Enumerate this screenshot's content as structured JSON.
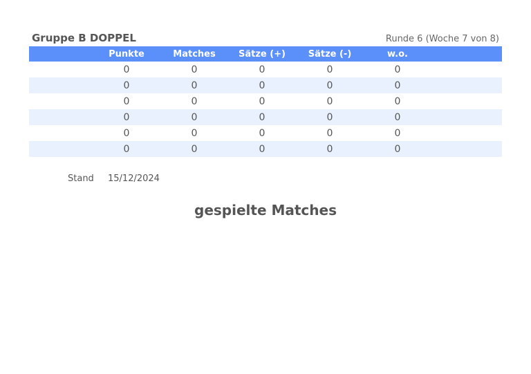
{
  "header": {
    "group_title": "Gruppe B DOPPEL",
    "round_info": "Runde 6 (Woche 7 von 8)"
  },
  "table": {
    "columns": [
      "",
      "Punkte",
      "Matches",
      "Sätze (+)",
      "Sätze (-)",
      "w.o.",
      ""
    ],
    "rows": [
      [
        "",
        "0",
        "0",
        "0",
        "0",
        "0",
        ""
      ],
      [
        "",
        "0",
        "0",
        "0",
        "0",
        "0",
        ""
      ],
      [
        "",
        "0",
        "0",
        "0",
        "0",
        "0",
        ""
      ],
      [
        "",
        "0",
        "0",
        "0",
        "0",
        "0",
        ""
      ],
      [
        "",
        "0",
        "0",
        "0",
        "0",
        "0",
        ""
      ],
      [
        "",
        "0",
        "0",
        "0",
        "0",
        "0",
        ""
      ]
    ]
  },
  "footer": {
    "stand_label": "Stand",
    "stand_date": "15/12/2024"
  },
  "section": {
    "title": "gespielte Matches"
  },
  "colors": {
    "header_bg": "#5b8ff9",
    "stripe_bg": "#e8f1fd",
    "text": "#555555"
  }
}
